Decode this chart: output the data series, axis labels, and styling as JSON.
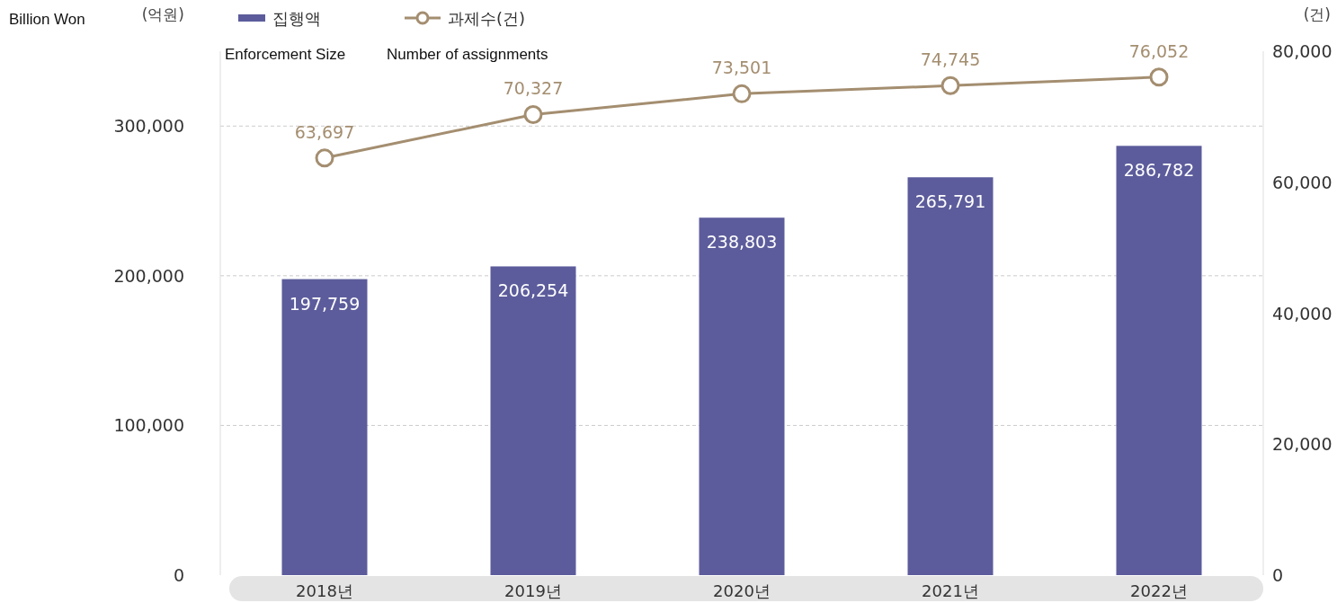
{
  "chart_data": {
    "type": "bar",
    "categories": [
      "2018년",
      "2019년",
      "2020년",
      "2021년",
      "2022년"
    ],
    "ylabel": "(억원)",
    "y2label": "(건)",
    "annotations": [
      "Billion Won",
      "Enforcement Size",
      "Number of assignments"
    ],
    "series": [
      {
        "name": "집행액",
        "color": "#5c5c9c",
        "values": [
          197759,
          206254,
          238803,
          265791,
          286782
        ],
        "value_labels": [
          "197,759",
          "206,254",
          "238,803",
          "265,791",
          "286,782"
        ]
      },
      {
        "name": "과제수(건)",
        "type": "line",
        "axis": "y2",
        "color": "#a48e70",
        "marker": "circle",
        "values": [
          63697,
          70327,
          73501,
          74745,
          76052
        ],
        "value_labels": [
          "63,697",
          "70,327",
          "73,501",
          "74,745",
          "76,052"
        ]
      }
    ],
    "ylim": [
      0,
      350000
    ],
    "yticks": [
      0,
      {
        "value": 100000,
        "label": "100,000"
      },
      {
        "value": 200000,
        "label": "200,000"
      },
      {
        "value": 300000,
        "label": "300,000"
      }
    ],
    "y2lim": [
      0,
      80000
    ],
    "y2ticks": [
      0,
      {
        "value": 20000,
        "label": "20,000"
      },
      {
        "value": 40000,
        "label": "40,000"
      },
      {
        "value": 60000,
        "label": "60,000"
      },
      {
        "value": 80000,
        "label": "80,000"
      }
    ],
    "grid": "y",
    "legend": "top left"
  }
}
